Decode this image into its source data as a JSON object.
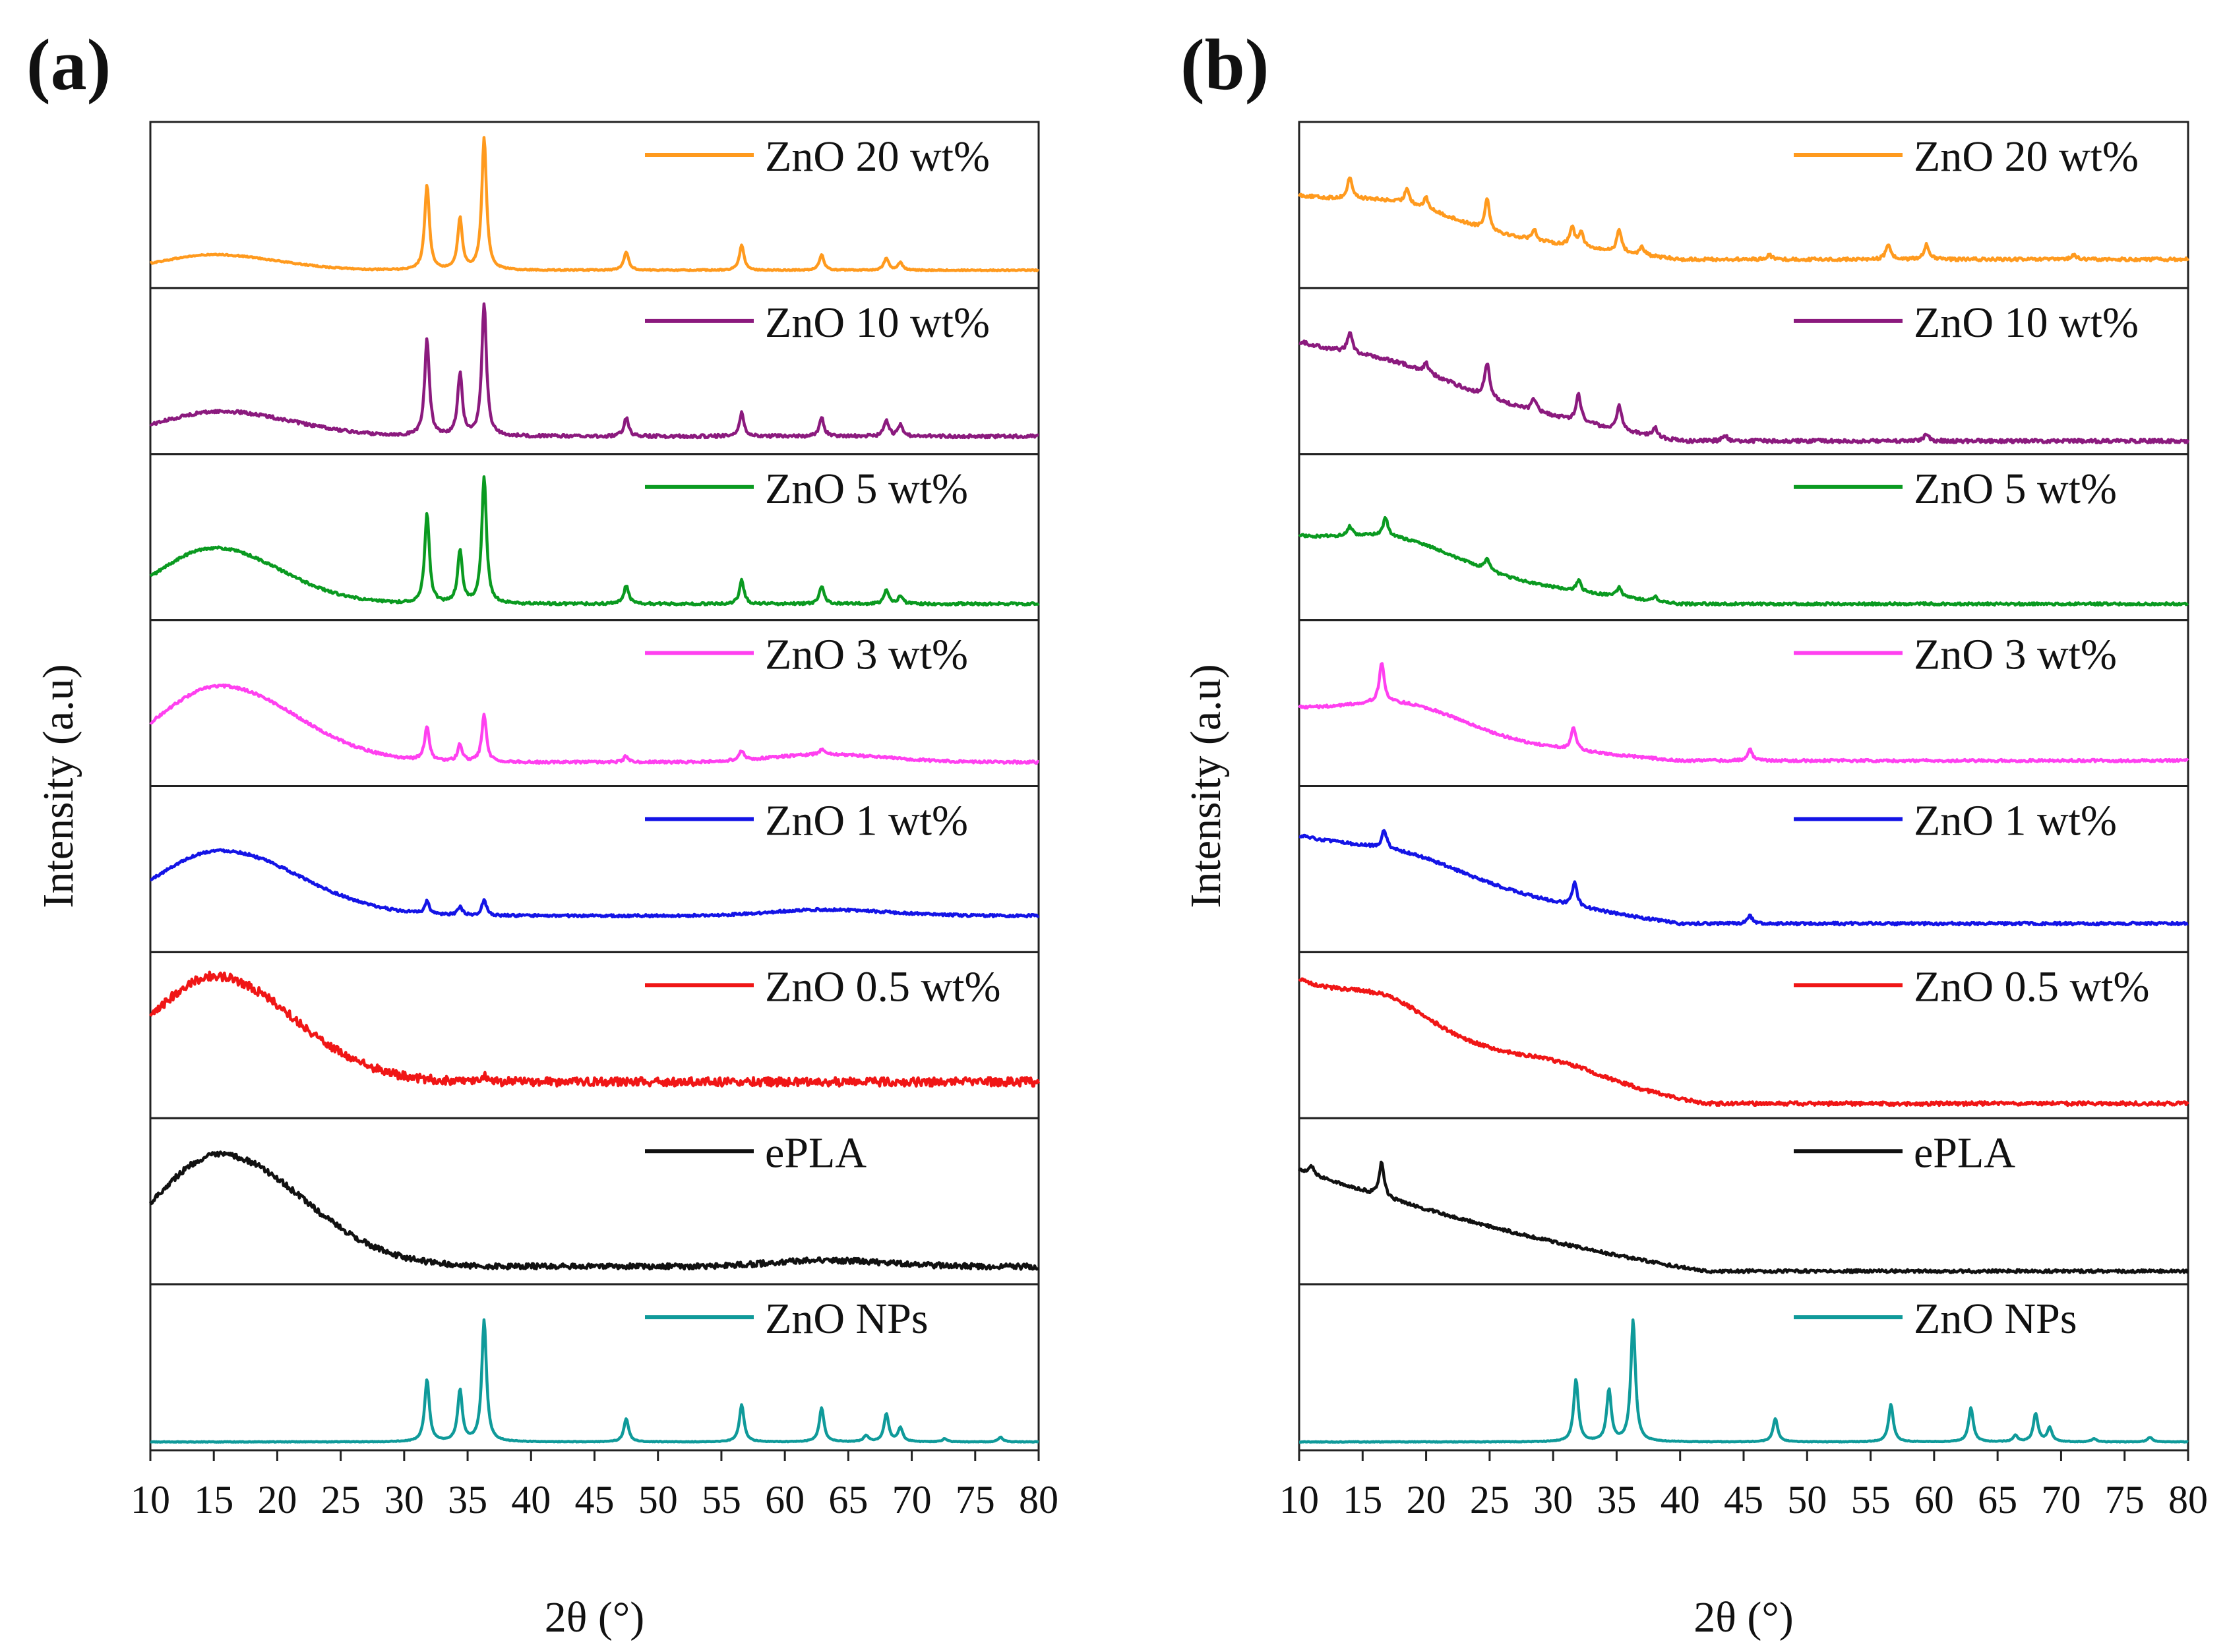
{
  "chart_data": [
    {
      "panel_label": "(a)",
      "type": "line",
      "xlabel": "2θ (°)",
      "ylabel": "Intensity (a.u)",
      "xlim": [
        10,
        80
      ],
      "xticks": [
        10,
        15,
        20,
        25,
        30,
        35,
        40,
        45,
        50,
        55,
        60,
        65,
        70,
        75,
        80
      ],
      "stacked": true,
      "series": [
        {
          "name": "ZnO 20 wt%",
          "color": "#FF9A1E",
          "profile": "plateau",
          "baseline": 0.08,
          "noise": 0.004,
          "humps": [
            [
              15,
              4,
              0.1
            ]
          ],
          "peaks": [
            [
              31.8,
              0.55
            ],
            [
              34.4,
              0.33
            ],
            [
              36.3,
              0.85
            ],
            [
              47.5,
              0.12
            ],
            [
              56.6,
              0.16
            ],
            [
              62.9,
              0.1
            ],
            [
              68.0,
              0.08
            ],
            [
              69.1,
              0.05
            ]
          ]
        },
        {
          "name": "ZnO 10 wt%",
          "color": "#8B1A7E",
          "profile": "plateau",
          "baseline": 0.08,
          "noise": 0.01,
          "humps": [
            [
              15.5,
              4.5,
              0.16
            ]
          ],
          "peaks": [
            [
              31.8,
              0.62
            ],
            [
              34.4,
              0.4
            ],
            [
              36.3,
              0.85
            ],
            [
              47.5,
              0.12
            ],
            [
              56.6,
              0.15
            ],
            [
              62.9,
              0.12
            ],
            [
              68.0,
              0.1
            ],
            [
              69.1,
              0.07
            ]
          ]
        },
        {
          "name": "ZnO 5 wt%",
          "color": "#0A9A20",
          "profile": "plateau",
          "baseline": 0.07,
          "noise": 0.008,
          "humps": [
            [
              15,
              4.2,
              0.36
            ]
          ],
          "peaks": [
            [
              31.8,
              0.58
            ],
            [
              34.4,
              0.34
            ],
            [
              36.3,
              0.82
            ],
            [
              47.5,
              0.12
            ],
            [
              56.6,
              0.15
            ],
            [
              62.9,
              0.11
            ],
            [
              68.0,
              0.09
            ],
            [
              69.1,
              0.05
            ]
          ]
        },
        {
          "name": "ZnO 3 wt%",
          "color": "#FF40F0",
          "profile": "plateau",
          "baseline": 0.12,
          "noise": 0.008,
          "humps": [
            [
              15.5,
              4.8,
              0.49
            ],
            [
              63,
              4,
              0.05
            ]
          ],
          "peaks": [
            [
              31.8,
              0.22
            ],
            [
              34.4,
              0.11
            ],
            [
              36.3,
              0.3
            ],
            [
              47.5,
              0.04
            ],
            [
              56.6,
              0.06
            ],
            [
              62.9,
              0.03
            ]
          ]
        },
        {
          "name": "ZnO 1 wt%",
          "color": "#1414E6",
          "profile": "plateau",
          "baseline": 0.2,
          "noise": 0.008,
          "humps": [
            [
              15.5,
              5,
              0.42
            ],
            [
              63,
              4,
              0.04
            ]
          ],
          "peaks": [
            [
              31.8,
              0.08
            ],
            [
              34.4,
              0.05
            ],
            [
              36.3,
              0.1
            ]
          ]
        },
        {
          "name": "ZnO 0.5 wt%",
          "color": "#F01616",
          "profile": "plateau",
          "baseline": 0.2,
          "noise": 0.028,
          "humps": [
            [
              15,
              5,
              0.68
            ]
          ],
          "peaks": [
            [
              36.3,
              0.04
            ]
          ]
        },
        {
          "name": "ePLA",
          "color": "#111111",
          "profile": "plateau",
          "baseline": 0.08,
          "noise": 0.018,
          "humps": [
            [
              15.5,
              5.2,
              0.72
            ],
            [
              63,
              4,
              0.04
            ]
          ],
          "peaks": []
        },
        {
          "name": "ZnO NPs",
          "color": "#0F9A9A",
          "profile": "plateau",
          "baseline": 0.02,
          "noise": 0.002,
          "humps": [],
          "peaks": [
            [
              31.8,
              0.4
            ],
            [
              34.4,
              0.33
            ],
            [
              36.3,
              0.78
            ],
            [
              47.5,
              0.15
            ],
            [
              56.6,
              0.24
            ],
            [
              62.9,
              0.22
            ],
            [
              66.4,
              0.04
            ],
            [
              68.0,
              0.18
            ],
            [
              69.1,
              0.09
            ],
            [
              72.6,
              0.02
            ],
            [
              77.0,
              0.03
            ]
          ]
        }
      ]
    },
    {
      "panel_label": "(b)",
      "type": "line",
      "xlabel": "2θ (°)",
      "ylabel": "Intensity (a.u)",
      "xlim": [
        10,
        80
      ],
      "xticks": [
        10,
        15,
        20,
        25,
        30,
        35,
        40,
        45,
        50,
        55,
        60,
        65,
        70,
        75,
        80
      ],
      "stacked": true,
      "series": [
        {
          "name": "ZnO 20 wt%",
          "color": "#FF9A1E",
          "profile": "decay",
          "baseline": 0.15,
          "start": 0.55,
          "knee": 40,
          "noise": 0.01,
          "humps": [
            [
              18,
              4,
              0.1
            ]
          ],
          "peaks": [
            [
              14,
              0.14
            ],
            [
              18.5,
              0.1
            ],
            [
              20,
              0.07
            ],
            [
              24.8,
              0.2
            ],
            [
              28.5,
              0.07
            ],
            [
              31.5,
              0.12
            ],
            [
              32.2,
              0.1
            ],
            [
              35.2,
              0.15
            ],
            [
              37,
              0.05
            ],
            [
              47,
              0.03
            ],
            [
              56.4,
              0.1
            ],
            [
              59.4,
              0.1
            ],
            [
              71,
              0.03
            ]
          ]
        },
        {
          "name": "ZnO 10 wt%",
          "color": "#8B1A7E",
          "profile": "decay",
          "baseline": 0.05,
          "start": 0.68,
          "knee": 40,
          "noise": 0.012,
          "humps": [
            [
              18,
              4,
              0.08
            ]
          ],
          "peaks": [
            [
              14,
              0.14
            ],
            [
              20,
              0.06
            ],
            [
              24.8,
              0.22
            ],
            [
              28.5,
              0.08
            ],
            [
              32,
              0.18
            ],
            [
              35.2,
              0.16
            ],
            [
              38,
              0.06
            ],
            [
              43.5,
              0.04
            ],
            [
              59.4,
              0.05
            ]
          ]
        },
        {
          "name": "ZnO 5 wt%",
          "color": "#0A9A20",
          "profile": "decay",
          "baseline": 0.07,
          "start": 0.48,
          "knee": 40,
          "noise": 0.008,
          "humps": [
            [
              18,
              4.5,
              0.15
            ]
          ],
          "peaks": [
            [
              14,
              0.06
            ],
            [
              16.8,
              0.12
            ],
            [
              24.8,
              0.07
            ],
            [
              32,
              0.07
            ],
            [
              35.2,
              0.06
            ],
            [
              38,
              0.03
            ]
          ]
        },
        {
          "name": "ZnO 3 wt%",
          "color": "#FF40F0",
          "profile": "decay",
          "baseline": 0.13,
          "start": 0.45,
          "knee": 40,
          "noise": 0.008,
          "humps": [
            [
              18.5,
              4.5,
              0.16
            ]
          ],
          "peaks": [
            [
              16.5,
              0.26
            ],
            [
              31.6,
              0.15
            ],
            [
              45.5,
              0.07
            ]
          ]
        },
        {
          "name": "ZnO 1 wt%",
          "color": "#1414E6",
          "profile": "decay",
          "baseline": 0.15,
          "start": 0.7,
          "knee": 40,
          "noise": 0.009,
          "humps": [
            [
              18.5,
              4.5,
              0.1
            ]
          ],
          "peaks": [
            [
              16.7,
              0.12
            ],
            [
              31.7,
              0.15
            ],
            [
              45.5,
              0.05
            ]
          ]
        },
        {
          "name": "ZnO 0.5 wt%",
          "color": "#F01616",
          "profile": "decay",
          "baseline": 0.06,
          "start": 0.85,
          "knee": 42,
          "noise": 0.012,
          "humps": [
            [
              17,
              3,
              0.12
            ],
            [
              31,
              3,
              0.05
            ]
          ],
          "peaks": []
        },
        {
          "name": "ePLA",
          "color": "#111111",
          "profile": "decay",
          "baseline": 0.05,
          "start": 0.7,
          "knee": 42,
          "noise": 0.01,
          "humps": [],
          "peaks": [
            [
              16.5,
              0.22
            ],
            [
              11,
              0.05
            ]
          ]
        },
        {
          "name": "ZnO NPs",
          "color": "#0F9A9A",
          "profile": "plateau",
          "baseline": 0.02,
          "noise": 0.002,
          "humps": [],
          "peaks": [
            [
              31.8,
              0.4
            ],
            [
              34.4,
              0.33
            ],
            [
              36.3,
              0.78
            ],
            [
              47.5,
              0.15
            ],
            [
              56.6,
              0.24
            ],
            [
              62.9,
              0.22
            ],
            [
              66.4,
              0.04
            ],
            [
              68.0,
              0.18
            ],
            [
              69.1,
              0.09
            ],
            [
              72.6,
              0.02
            ],
            [
              77.0,
              0.03
            ]
          ]
        }
      ]
    }
  ]
}
